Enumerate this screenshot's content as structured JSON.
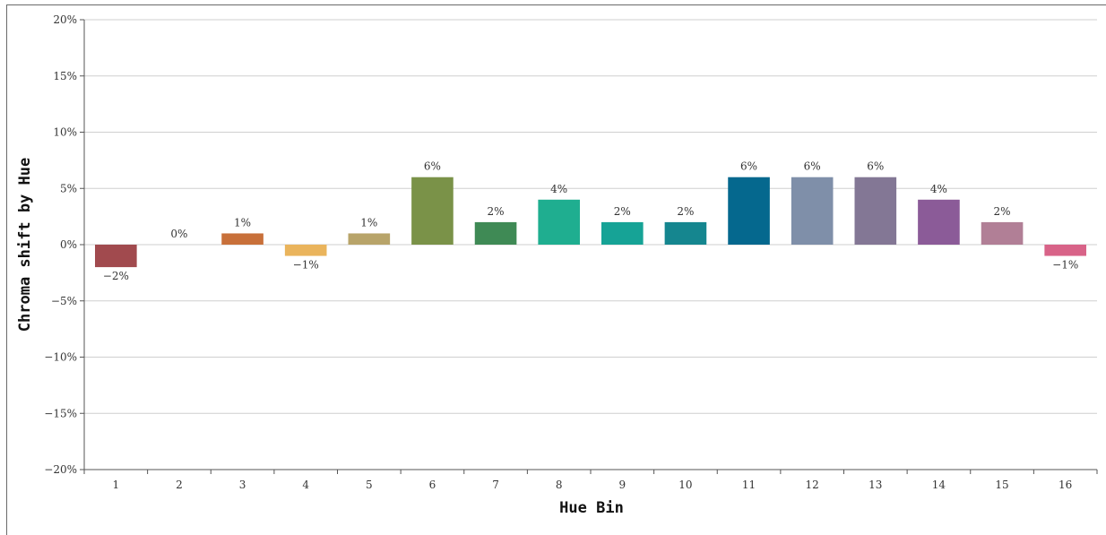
{
  "chart_data": {
    "type": "bar",
    "title": "",
    "xlabel": "Hue Bin",
    "ylabel": "Chroma shift by Hue",
    "ylim": [
      -20,
      20
    ],
    "y_ticks": [
      20,
      15,
      10,
      5,
      0,
      -5,
      -10,
      -15,
      -20
    ],
    "y_tick_labels": [
      "20%",
      "15%",
      "10%",
      "5%",
      "0%",
      "−5%",
      "−10%",
      "−15%",
      "−20%"
    ],
    "grid": "horizontal",
    "categories": [
      "1",
      "2",
      "3",
      "4",
      "5",
      "6",
      "7",
      "8",
      "9",
      "10",
      "11",
      "12",
      "13",
      "14",
      "15",
      "16"
    ],
    "values": [
      -2,
      0,
      1,
      -1,
      1,
      6,
      2,
      4,
      2,
      2,
      6,
      6,
      6,
      4,
      2,
      -1
    ],
    "data_labels": [
      "−2%",
      "0%",
      "1%",
      "−1%",
      "1%",
      "6%",
      "2%",
      "4%",
      "2%",
      "2%",
      "6%",
      "6%",
      "6%",
      "4%",
      "2%",
      "−1%"
    ],
    "colors": [
      "#a14a4e",
      "#c8874f",
      "#c8703a",
      "#eab45c",
      "#b8a46a",
      "#7a9248",
      "#3f8a55",
      "#1fae90",
      "#16a396",
      "#15868f",
      "#05688e",
      "#7f8fa9",
      "#837795",
      "#8b5b98",
      "#b17f96",
      "#d86388"
    ]
  }
}
